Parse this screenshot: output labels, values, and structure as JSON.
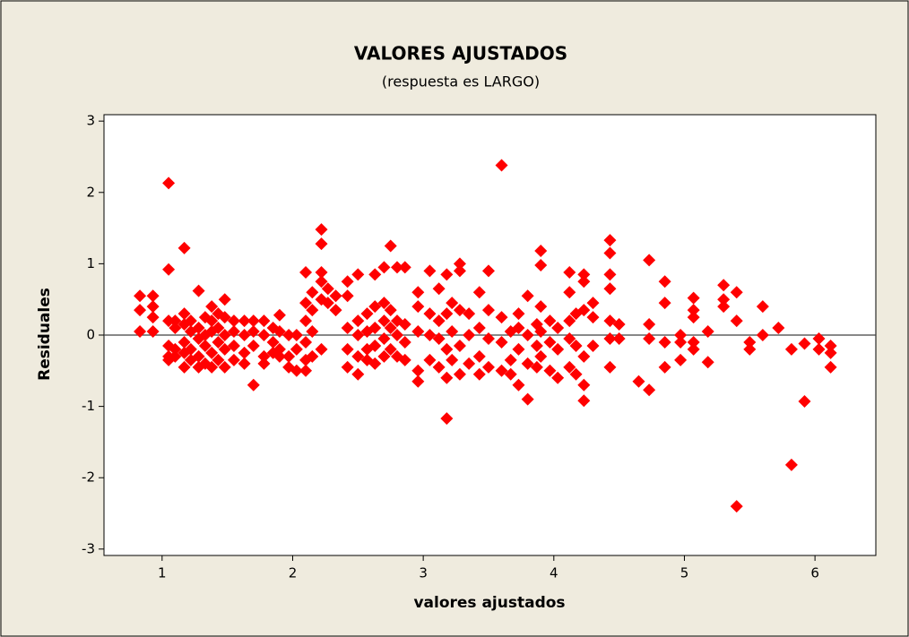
{
  "chart_data": {
    "type": "scatter",
    "title": "VALORES AJUSTADOS",
    "subtitle": "(respuesta es LARGO)",
    "xlabel": "valores ajustados",
    "ylabel": "Residuales",
    "color": "#ff0000",
    "reference_line": 0,
    "xlim": [
      0.555,
      6.466
    ],
    "ylim": [
      -3.09,
      3.09
    ],
    "xticks": [
      1,
      2,
      3,
      4,
      5,
      6
    ],
    "yticks": [
      -3,
      -2,
      -1,
      0,
      1,
      2,
      3
    ],
    "x": [
      0.83,
      0.83,
      0.83,
      0.93,
      0.93,
      0.93,
      0.93,
      1.05,
      1.05,
      1.05,
      1.05,
      1.05,
      1.05,
      1.1,
      1.1,
      1.1,
      1.1,
      1.17,
      1.17,
      1.17,
      1.17,
      1.17,
      1.17,
      1.22,
      1.22,
      1.22,
      1.22,
      1.28,
      1.28,
      1.28,
      1.28,
      1.28,
      1.33,
      1.33,
      1.33,
      1.33,
      1.38,
      1.38,
      1.38,
      1.38,
      1.38,
      1.43,
      1.43,
      1.43,
      1.43,
      1.48,
      1.48,
      1.48,
      1.48,
      1.48,
      1.55,
      1.55,
      1.55,
      1.55,
      1.63,
      1.63,
      1.63,
      1.63,
      1.7,
      1.7,
      1.7,
      1.7,
      1.78,
      1.78,
      1.78,
      1.78,
      1.85,
      1.85,
      1.85,
      1.9,
      1.9,
      1.9,
      1.9,
      1.97,
      1.97,
      1.97,
      2.03,
      2.03,
      2.03,
      2.1,
      2.1,
      2.1,
      2.1,
      2.1,
      2.1,
      2.15,
      2.15,
      2.15,
      2.15,
      2.22,
      2.22,
      2.22,
      2.22,
      2.22,
      2.22,
      2.27,
      2.27,
      2.33,
      2.33,
      2.42,
      2.42,
      2.42,
      2.42,
      2.42,
      2.5,
      2.5,
      2.5,
      2.5,
      2.5,
      2.57,
      2.57,
      2.57,
      2.57,
      2.63,
      2.63,
      2.63,
      2.63,
      2.63,
      2.7,
      2.7,
      2.7,
      2.7,
      2.7,
      2.75,
      2.75,
      2.75,
      2.75,
      2.8,
      2.8,
      2.8,
      2.8,
      2.86,
      2.86,
      2.86,
      2.86,
      2.96,
      2.96,
      2.96,
      2.96,
      2.96,
      3.05,
      3.05,
      3.05,
      3.05,
      3.12,
      3.12,
      3.12,
      3.12,
      3.18,
      3.18,
      3.18,
      3.18,
      3.18,
      3.22,
      3.22,
      3.22,
      3.28,
      3.28,
      3.28,
      3.28,
      3.28,
      3.35,
      3.35,
      3.35,
      3.43,
      3.43,
      3.43,
      3.43,
      3.5,
      3.5,
      3.5,
      3.5,
      3.6,
      3.6,
      3.6,
      3.6,
      3.67,
      3.67,
      3.67,
      3.73,
      3.73,
      3.73,
      3.73,
      3.8,
      3.8,
      3.8,
      3.8,
      3.87,
      3.87,
      3.87,
      3.9,
      3.9,
      3.9,
      3.9,
      3.9,
      3.97,
      3.97,
      3.97,
      4.03,
      4.03,
      4.03,
      4.12,
      4.12,
      4.12,
      4.12,
      4.12,
      4.17,
      4.17,
      4.17,
      4.23,
      4.23,
      4.23,
      4.23,
      4.23,
      4.23,
      4.3,
      4.3,
      4.3,
      4.43,
      4.43,
      4.43,
      4.43,
      4.43,
      4.43,
      4.43,
      4.5,
      4.5,
      4.65,
      4.73,
      4.73,
      4.73,
      4.73,
      4.85,
      4.85,
      4.85,
      4.85,
      4.97,
      4.97,
      4.97,
      5.07,
      5.07,
      5.07,
      5.07,
      5.07,
      5.18,
      5.18,
      5.3,
      5.3,
      5.3,
      5.4,
      5.4,
      5.4,
      5.5,
      5.5,
      5.6,
      5.6,
      5.72,
      5.82,
      5.82,
      5.92,
      5.92,
      6.03,
      6.03,
      6.12,
      6.12,
      6.12
    ],
    "values": [
      0.55,
      0.35,
      0.05,
      0.55,
      0.4,
      0.25,
      0.05,
      2.13,
      0.92,
      0.2,
      -0.15,
      -0.3,
      -0.35,
      0.2,
      0.1,
      -0.2,
      -0.3,
      1.22,
      0.3,
      0.15,
      -0.1,
      -0.25,
      -0.45,
      0.2,
      0.05,
      -0.2,
      -0.35,
      0.62,
      0.1,
      -0.05,
      -0.3,
      -0.45,
      0.25,
      0.0,
      -0.15,
      -0.4,
      0.4,
      0.2,
      0.05,
      -0.25,
      -0.45,
      0.3,
      0.1,
      -0.1,
      -0.35,
      0.5,
      0.25,
      0.0,
      -0.2,
      -0.45,
      0.2,
      0.05,
      -0.15,
      -0.35,
      0.2,
      0.0,
      -0.25,
      -0.4,
      0.2,
      0.05,
      -0.15,
      -0.7,
      0.2,
      0.0,
      -0.3,
      -0.4,
      0.1,
      -0.1,
      -0.25,
      0.28,
      0.05,
      -0.2,
      -0.3,
      0.0,
      -0.3,
      -0.45,
      0.0,
      -0.2,
      -0.5,
      0.88,
      0.45,
      0.2,
      -0.1,
      -0.35,
      -0.5,
      0.6,
      0.35,
      0.05,
      -0.3,
      1.48,
      1.28,
      0.88,
      0.75,
      0.5,
      -0.2,
      0.65,
      0.45,
      0.55,
      0.35,
      0.75,
      0.55,
      0.1,
      -0.2,
      -0.45,
      0.85,
      0.2,
      0.0,
      -0.3,
      -0.55,
      0.3,
      0.05,
      -0.2,
      -0.35,
      0.85,
      0.4,
      0.1,
      -0.15,
      -0.4,
      0.95,
      0.45,
      0.2,
      -0.05,
      -0.3,
      1.25,
      0.35,
      0.1,
      -0.2,
      0.95,
      0.2,
      0.0,
      -0.3,
      0.95,
      0.15,
      -0.1,
      -0.35,
      0.6,
      0.4,
      0.05,
      -0.5,
      -0.65,
      0.9,
      0.3,
      0.0,
      -0.35,
      0.65,
      0.2,
      -0.05,
      -0.45,
      0.85,
      0.3,
      -0.2,
      -0.6,
      -1.17,
      0.45,
      0.05,
      -0.35,
      1.0,
      0.9,
      0.35,
      -0.15,
      -0.55,
      0.3,
      0.0,
      -0.4,
      0.6,
      0.1,
      -0.3,
      -0.55,
      0.9,
      0.35,
      -0.05,
      -0.45,
      2.38,
      0.25,
      -0.1,
      -0.5,
      0.05,
      -0.35,
      -0.55,
      0.3,
      0.1,
      -0.2,
      -0.7,
      0.55,
      0.0,
      -0.4,
      -0.9,
      0.15,
      -0.15,
      -0.45,
      1.18,
      0.98,
      0.4,
      0.05,
      -0.3,
      0.2,
      -0.1,
      -0.5,
      0.1,
      -0.2,
      -0.6,
      0.88,
      0.6,
      0.2,
      -0.05,
      -0.45,
      0.3,
      -0.15,
      -0.55,
      0.85,
      0.75,
      0.35,
      -0.3,
      -0.7,
      -0.92,
      0.45,
      0.25,
      -0.15,
      1.33,
      1.15,
      0.85,
      0.65,
      0.2,
      -0.05,
      -0.45,
      0.15,
      -0.05,
      -0.65,
      1.05,
      0.15,
      -0.05,
      -0.77,
      0.75,
      0.45,
      -0.1,
      -0.45,
      0.0,
      -0.1,
      -0.35,
      0.52,
      0.35,
      0.25,
      -0.1,
      -0.2,
      0.05,
      -0.38,
      0.7,
      0.5,
      0.4,
      0.6,
      0.2,
      -2.4,
      -0.1,
      -0.2,
      0.4,
      0.0,
      0.1,
      -0.2,
      -1.82,
      -0.12,
      -0.93,
      -0.05,
      -0.2,
      -0.15,
      -0.25,
      -0.45
    ]
  }
}
